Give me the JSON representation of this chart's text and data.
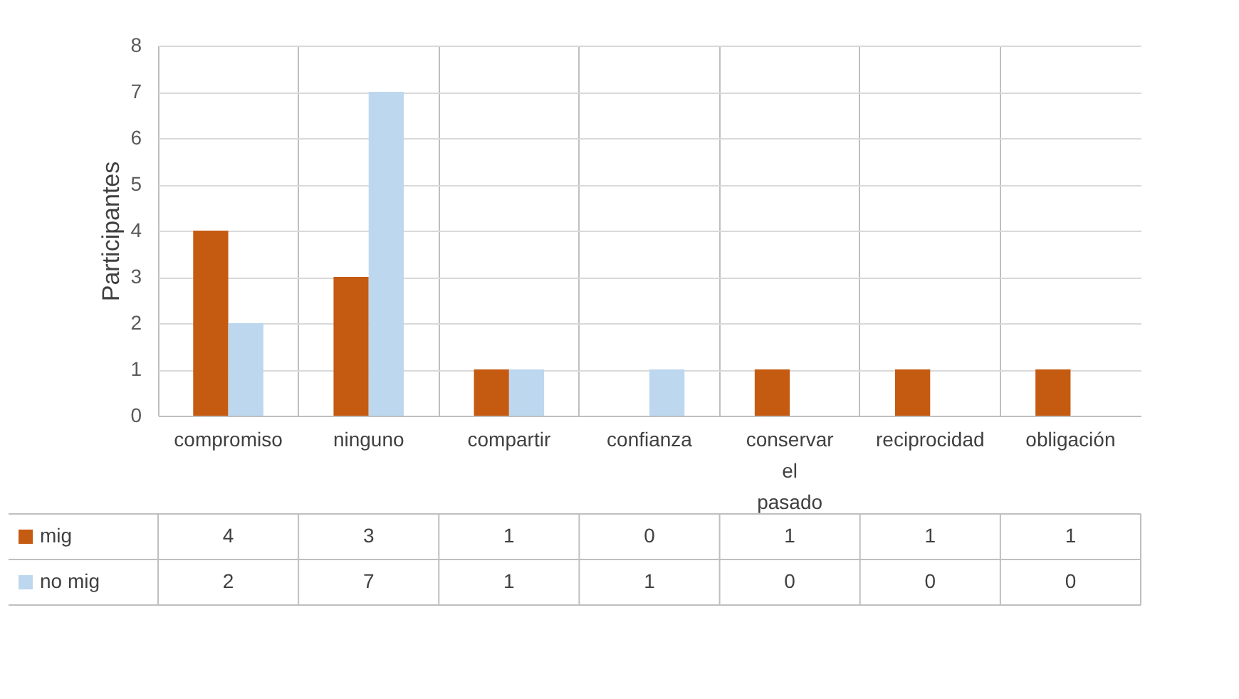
{
  "chart_data": {
    "type": "bar",
    "ylabel": "Participantes",
    "categories": [
      "compromiso",
      "ninguno",
      "compartir",
      "confianza",
      "conservar el pasado",
      "reciprocidad",
      "obligación"
    ],
    "series": [
      {
        "name": "mig",
        "color": "#c55a11",
        "values": [
          4,
          3,
          1,
          0,
          1,
          1,
          1
        ]
      },
      {
        "name": "no mig",
        "color": "#bdd7ee",
        "values": [
          2,
          7,
          1,
          1,
          0,
          0,
          0
        ]
      }
    ],
    "ylim": [
      0,
      8
    ],
    "yticks": [
      0,
      1,
      2,
      3,
      4,
      5,
      6,
      7,
      8
    ],
    "grid": "y",
    "legend": "bottom left",
    "data_labels": true
  }
}
